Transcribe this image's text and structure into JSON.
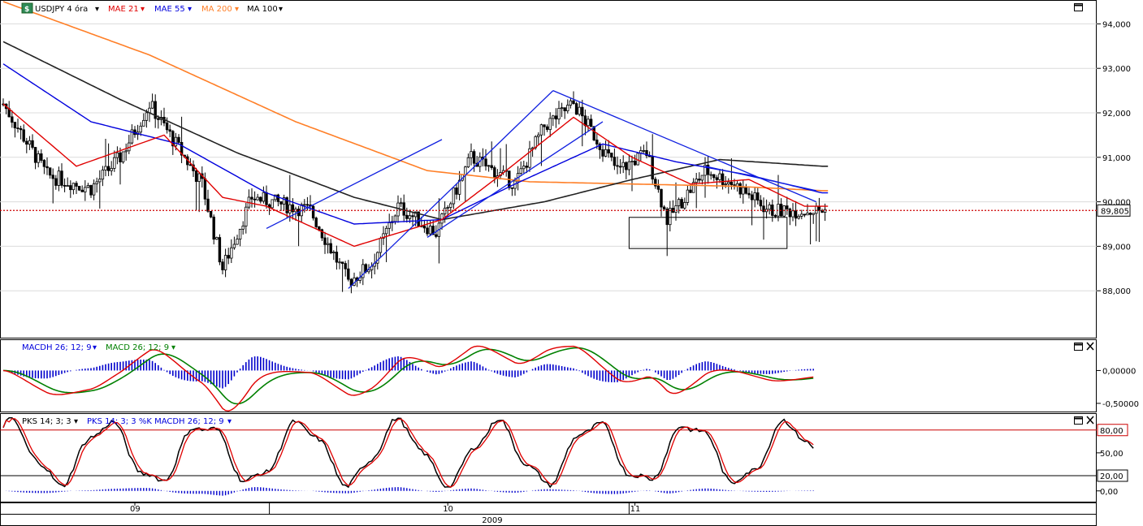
{
  "chart_data": {
    "type": "candlestick",
    "price_panel": {
      "legend": [
        {
          "label": "USDJPY 4 óra",
          "color": "#000000"
        },
        {
          "label": "MAE 21",
          "color": "#e00000"
        },
        {
          "label": "MAE 55",
          "color": "#0000dd"
        },
        {
          "label": "MA 200",
          "color": "#ff7f27"
        },
        {
          "label": "MA 100",
          "color": "#000000"
        }
      ],
      "y_ticks": [
        "88,000",
        "89,000",
        "90,000",
        "91,000",
        "92,000",
        "93,000",
        "94,000"
      ],
      "ylim": [
        87.0,
        94.5
      ],
      "last_price": 89.805,
      "last_price_label": "89,805",
      "key_points": [
        {
          "x": 0,
          "close": 92.2
        },
        {
          "x": 15,
          "close": 90.6
        },
        {
          "x": 30,
          "close": 90.3
        },
        {
          "x": 40,
          "close": 91.0
        },
        {
          "x": 50,
          "close": 92.2
        },
        {
          "x": 60,
          "close": 91.2
        },
        {
          "x": 68,
          "close": 90.4
        },
        {
          "x": 75,
          "close": 88.5
        },
        {
          "x": 85,
          "close": 90.1
        },
        {
          "x": 105,
          "close": 89.8
        },
        {
          "x": 118,
          "close": 88.2
        },
        {
          "x": 126,
          "close": 88.6
        },
        {
          "x": 135,
          "close": 89.9
        },
        {
          "x": 148,
          "close": 89.3
        },
        {
          "x": 160,
          "close": 91.0
        },
        {
          "x": 175,
          "close": 90.4
        },
        {
          "x": 185,
          "close": 91.7
        },
        {
          "x": 195,
          "close": 92.2
        },
        {
          "x": 210,
          "close": 90.7
        },
        {
          "x": 220,
          "close": 91.1
        },
        {
          "x": 227,
          "close": 89.6
        },
        {
          "x": 240,
          "close": 90.7
        },
        {
          "x": 250,
          "close": 90.4
        },
        {
          "x": 262,
          "close": 89.8
        },
        {
          "x": 274,
          "close": 89.8
        }
      ],
      "mae21_points": [
        {
          "x": 0,
          "y": 92.2
        },
        {
          "x": 25,
          "y": 90.8
        },
        {
          "x": 55,
          "y": 91.5
        },
        {
          "x": 75,
          "y": 90.1
        },
        {
          "x": 90,
          "y": 89.9
        },
        {
          "x": 120,
          "y": 89.0
        },
        {
          "x": 150,
          "y": 89.6
        },
        {
          "x": 170,
          "y": 90.6
        },
        {
          "x": 195,
          "y": 91.9
        },
        {
          "x": 215,
          "y": 91.0
        },
        {
          "x": 235,
          "y": 90.4
        },
        {
          "x": 255,
          "y": 90.5
        },
        {
          "x": 274,
          "y": 89.9
        }
      ],
      "mae55_points": [
        {
          "x": 0,
          "y": 93.1
        },
        {
          "x": 30,
          "y": 91.8
        },
        {
          "x": 60,
          "y": 91.3
        },
        {
          "x": 90,
          "y": 90.2
        },
        {
          "x": 120,
          "y": 89.5
        },
        {
          "x": 150,
          "y": 89.6
        },
        {
          "x": 175,
          "y": 90.4
        },
        {
          "x": 205,
          "y": 91.3
        },
        {
          "x": 230,
          "y": 90.9
        },
        {
          "x": 255,
          "y": 90.6
        },
        {
          "x": 280,
          "y": 90.2
        }
      ],
      "ma100_points": [
        {
          "x": 0,
          "y": 93.6
        },
        {
          "x": 40,
          "y": 92.3
        },
        {
          "x": 80,
          "y": 91.1
        },
        {
          "x": 120,
          "y": 90.1
        },
        {
          "x": 150,
          "y": 89.6
        },
        {
          "x": 185,
          "y": 90.0
        },
        {
          "x": 215,
          "y": 90.5
        },
        {
          "x": 245,
          "y": 90.95
        },
        {
          "x": 280,
          "y": 90.8
        }
      ],
      "ma200_points": [
        {
          "x": 0,
          "y": 94.5
        },
        {
          "x": 50,
          "y": 93.3
        },
        {
          "x": 100,
          "y": 91.8
        },
        {
          "x": 145,
          "y": 90.7
        },
        {
          "x": 180,
          "y": 90.45
        },
        {
          "x": 215,
          "y": 90.4
        },
        {
          "x": 250,
          "y": 90.35
        },
        {
          "x": 280,
          "y": 90.25
        }
      ],
      "trendlines": [
        {
          "x1": 118,
          "y1": 88.05,
          "x2": 188,
          "y2": 92.5
        },
        {
          "x1": 90,
          "y1": 89.4,
          "x2": 150,
          "y2": 91.4
        },
        {
          "x1": 145,
          "y1": 89.2,
          "x2": 205,
          "y2": 91.8
        },
        {
          "x1": 188,
          "y1": 92.5,
          "x2": 278,
          "y2": 90.0
        },
        {
          "x1": 240,
          "y1": 90.8,
          "x2": 278,
          "y2": 90.25
        }
      ],
      "box": {
        "x1": 214,
        "y1": 89.65,
        "x2": 268,
        "y2": 88.95
      }
    },
    "macd_panel": {
      "legend": [
        {
          "label": "MACDH 26; 12; 9",
          "color": "#0000dd"
        },
        {
          "label": "MACD 26; 12; 9",
          "color": "#008000"
        }
      ],
      "y_ticks": [
        "0,00000",
        "-0,50000"
      ],
      "ylim": [
        -0.6,
        0.45
      ]
    },
    "stoch_panel": {
      "legend": [
        {
          "label": "PKS 14; 3; 3",
          "color": "#000000"
        },
        {
          "label": "PKS 14; 3; 3 %K MACDH 26; 12; 9",
          "color": "#0000dd"
        }
      ],
      "y_ticks": [
        "0,00",
        "20,00",
        "50,00",
        "80,00"
      ],
      "ylim": [
        -12,
        100
      ],
      "levels": [
        20,
        80
      ]
    },
    "x_axis": {
      "bars": 282,
      "month_labels": [
        {
          "text": "09",
          "bar": 45
        },
        {
          "text": "10",
          "bar": 152
        },
        {
          "text": "11",
          "bar": 216
        }
      ],
      "separators": [
        91,
        214
      ],
      "year_label": {
        "text": "2009",
        "bar": 167
      }
    }
  }
}
